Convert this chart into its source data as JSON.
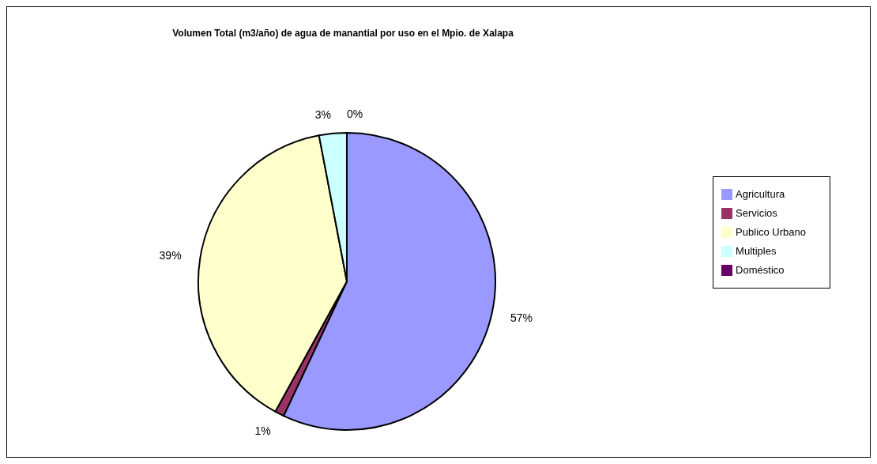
{
  "chart_data": {
    "type": "pie",
    "title": "Volumen Total (m3/año) de agua de manantial por uso en el Mpio. de Xalapa",
    "categories": [
      "Agricultura",
      "Servicios",
      "Publico Urbano",
      "Multiples",
      "Doméstico"
    ],
    "values": [
      57,
      1,
      39,
      3,
      0
    ],
    "value_labels": [
      "57%",
      "1%",
      "39%",
      "3%",
      "0%"
    ],
    "colors": [
      "#9999ff",
      "#993366",
      "#ffffcc",
      "#ccffff",
      "#660066"
    ],
    "legend": "right"
  }
}
